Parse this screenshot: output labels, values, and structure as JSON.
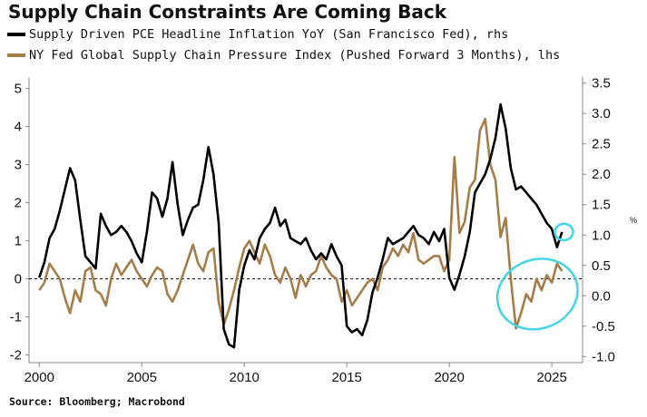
{
  "title": "Supply Chain Constraints Are Coming Back",
  "legend": [
    {
      "label": "Supply Driven PCE Headline Inflation YoY (San Francisco Fed), rhs",
      "color": "#000000"
    },
    {
      "label": "NY Fed Global Supply Chain Pressure Index (Pushed Forward 3 Months), lhs",
      "color": "#a67c47"
    }
  ],
  "source": "Source: Bloomberg; Macrobond",
  "colors": {
    "pce": "#000000",
    "gscpi": "#a67c47",
    "highlight": "#3fd6e6",
    "zero_line": "#000000",
    "axis": "#888888"
  },
  "chart_data": {
    "type": "line",
    "left_axis": {
      "ticks": [
        "5",
        "4",
        "3",
        "2",
        "1",
        "0",
        "-1",
        "-2"
      ],
      "range": [
        -2.2,
        5.3
      ]
    },
    "right_axis": {
      "ticks": [
        "3.5",
        "3.0",
        "2.5",
        "2.0",
        "1.5",
        "1.0",
        "0.5",
        "0.0",
        "-0.5",
        "-1.0"
      ],
      "range": [
        -1.1,
        3.6
      ],
      "unit_marker": "%"
    },
    "x_axis": {
      "ticks": [
        "2000",
        "2005",
        "2010",
        "2015",
        "2020",
        "2025"
      ],
      "range": [
        1999.5,
        2026.5
      ]
    },
    "zero_reference_line": "dashed",
    "series": [
      {
        "name": "Supply Driven PCE Headline Inflation YoY (San Francisco Fed), rhs",
        "axis": "right",
        "x": [
          2000.0,
          2000.25,
          2000.5,
          2000.75,
          2001.0,
          2001.25,
          2001.5,
          2001.75,
          2002.0,
          2002.25,
          2002.5,
          2002.75,
          2003.0,
          2003.25,
          2003.5,
          2003.75,
          2004.0,
          2004.25,
          2004.5,
          2004.75,
          2005.0,
          2005.25,
          2005.5,
          2005.75,
          2006.0,
          2006.25,
          2006.5,
          2006.75,
          2007.0,
          2007.25,
          2007.5,
          2007.75,
          2008.0,
          2008.25,
          2008.5,
          2008.75,
          2009.0,
          2009.25,
          2009.5,
          2009.75,
          2010.0,
          2010.25,
          2010.5,
          2010.75,
          2011.0,
          2011.25,
          2011.5,
          2011.75,
          2012.0,
          2012.25,
          2012.5,
          2012.75,
          2013.0,
          2013.25,
          2013.5,
          2013.75,
          2014.0,
          2014.25,
          2014.5,
          2014.75,
          2015.0,
          2015.25,
          2015.5,
          2015.75,
          2016.0,
          2016.25,
          2016.5,
          2016.75,
          2017.0,
          2017.25,
          2017.5,
          2017.75,
          2018.0,
          2018.25,
          2018.5,
          2018.75,
          2019.0,
          2019.25,
          2019.5,
          2019.75,
          2020.0,
          2020.25,
          2020.5,
          2020.75,
          2021.0,
          2021.25,
          2021.5,
          2021.75,
          2022.0,
          2022.25,
          2022.5,
          2022.75,
          2023.0,
          2023.25,
          2023.5,
          2023.75,
          2024.0,
          2024.25,
          2024.5,
          2024.75,
          2025.0,
          2025.25,
          2025.5
        ],
        "values": [
          0.3,
          0.55,
          0.95,
          1.1,
          1.4,
          1.75,
          2.1,
          1.9,
          1.25,
          0.65,
          0.55,
          0.45,
          1.35,
          1.15,
          1.0,
          1.05,
          1.15,
          1.05,
          0.9,
          0.7,
          0.55,
          1.05,
          1.7,
          1.6,
          1.3,
          1.6,
          2.2,
          1.5,
          1.0,
          1.25,
          1.45,
          1.5,
          1.9,
          2.45,
          2.0,
          1.2,
          -0.55,
          -0.8,
          -0.85,
          0.1,
          0.5,
          0.75,
          0.6,
          0.95,
          1.1,
          1.2,
          1.45,
          1.15,
          1.25,
          0.95,
          0.9,
          0.85,
          0.95,
          0.75,
          0.6,
          0.7,
          0.6,
          0.85,
          0.65,
          0.5,
          -0.5,
          -0.6,
          -0.55,
          -0.65,
          -0.4,
          0.05,
          0.3,
          0.6,
          0.95,
          0.85,
          0.9,
          0.95,
          1.05,
          1.15,
          1.0,
          0.95,
          0.85,
          1.05,
          0.9,
          1.1,
          0.3,
          0.1,
          0.35,
          0.65,
          1.05,
          1.7,
          1.85,
          2.0,
          2.25,
          2.6,
          3.15,
          2.75,
          2.1,
          1.75,
          1.8,
          1.7,
          1.6,
          1.5,
          1.35,
          1.2,
          1.1,
          0.8,
          1.05
        ]
      },
      {
        "name": "NY Fed Global Supply Chain Pressure Index (Pushed Forward 3 Months), lhs",
        "axis": "left",
        "x": [
          2000.0,
          2000.25,
          2000.5,
          2000.75,
          2001.0,
          2001.25,
          2001.5,
          2001.75,
          2002.0,
          2002.25,
          2002.5,
          2002.75,
          2003.0,
          2003.25,
          2003.5,
          2003.75,
          2004.0,
          2004.25,
          2004.5,
          2004.75,
          2005.0,
          2005.25,
          2005.5,
          2005.75,
          2006.0,
          2006.25,
          2006.5,
          2006.75,
          2007.0,
          2007.25,
          2007.5,
          2007.75,
          2008.0,
          2008.25,
          2008.5,
          2008.75,
          2009.0,
          2009.25,
          2009.5,
          2009.75,
          2010.0,
          2010.25,
          2010.5,
          2010.75,
          2011.0,
          2011.25,
          2011.5,
          2011.75,
          2012.0,
          2012.25,
          2012.5,
          2012.75,
          2013.0,
          2013.25,
          2013.5,
          2013.75,
          2014.0,
          2014.25,
          2014.5,
          2014.75,
          2015.0,
          2015.25,
          2015.5,
          2015.75,
          2016.0,
          2016.25,
          2016.5,
          2016.75,
          2017.0,
          2017.25,
          2017.5,
          2017.75,
          2018.0,
          2018.25,
          2018.5,
          2018.75,
          2019.0,
          2019.25,
          2019.5,
          2019.75,
          2020.0,
          2020.25,
          2020.5,
          2020.75,
          2021.0,
          2021.25,
          2021.5,
          2021.75,
          2022.0,
          2022.25,
          2022.5,
          2022.75,
          2023.0,
          2023.25,
          2023.5,
          2023.75,
          2024.0,
          2024.25,
          2024.5,
          2024.75,
          2025.0,
          2025.25,
          2025.5
        ],
        "values": [
          -0.3,
          -0.1,
          0.4,
          0.2,
          0.0,
          -0.5,
          -0.9,
          -0.3,
          -0.6,
          0.2,
          0.3,
          -0.3,
          -0.4,
          -0.7,
          0.0,
          0.4,
          0.1,
          0.3,
          0.5,
          0.2,
          0.0,
          -0.2,
          0.1,
          0.3,
          0.2,
          -0.4,
          -0.6,
          -0.3,
          0.1,
          0.5,
          0.9,
          0.4,
          0.2,
          0.7,
          0.8,
          -0.6,
          -1.2,
          -0.8,
          -0.3,
          0.3,
          0.8,
          1.0,
          0.7,
          0.4,
          0.9,
          0.6,
          0.1,
          -0.1,
          0.3,
          0.0,
          -0.5,
          0.1,
          -0.2,
          0.1,
          0.2,
          0.6,
          0.3,
          0.1,
          0.0,
          -0.6,
          -0.3,
          -0.7,
          -0.5,
          -0.3,
          -0.1,
          0.0,
          -0.3,
          0.3,
          0.5,
          0.8,
          0.6,
          0.9,
          0.7,
          1.2,
          0.5,
          0.4,
          0.5,
          0.6,
          0.6,
          0.2,
          0.5,
          3.2,
          1.2,
          1.5,
          2.4,
          2.6,
          3.9,
          4.2,
          3.0,
          2.6,
          1.1,
          1.6,
          0.0,
          -1.3,
          -0.9,
          -0.4,
          -0.6,
          0.0,
          -0.3,
          0.1,
          -0.1,
          0.4,
          0.2
        ]
      }
    ]
  },
  "annotations": [
    {
      "shape": "small-circle",
      "target": "PCE latest reading"
    },
    {
      "shape": "large-ellipse",
      "target": "GSCPI rebound 2023-2025"
    }
  ]
}
